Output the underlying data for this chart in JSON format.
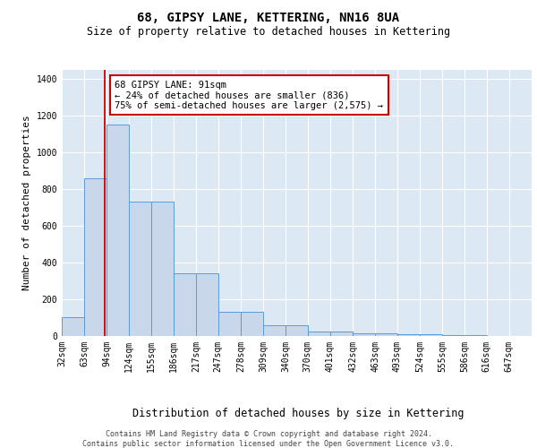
{
  "title": "68, GIPSY LANE, KETTERING, NN16 8UA",
  "subtitle": "Size of property relative to detached houses in Kettering",
  "xlabel": "Distribution of detached houses by size in Kettering",
  "ylabel": "Number of detached properties",
  "bar_edges": [
    32,
    63,
    94,
    124,
    155,
    186,
    217,
    247,
    278,
    309,
    340,
    370,
    401,
    432,
    463,
    493,
    524,
    555,
    586,
    616,
    647
  ],
  "bar_heights": [
    100,
    860,
    1150,
    730,
    730,
    340,
    340,
    130,
    130,
    60,
    60,
    25,
    25,
    15,
    15,
    10,
    10,
    5,
    5,
    2,
    2
  ],
  "bar_color": "#c8d8ea",
  "bar_edgecolor": "#5b9bd5",
  "background_color": "#dce9f5",
  "grid_color": "#ffffff",
  "red_line_x": 91,
  "red_line_color": "#cc0000",
  "annotation_line1": "68 GIPSY LANE: 91sqm",
  "annotation_line2": "← 24% of detached houses are smaller (836)",
  "annotation_line3": "75% of semi-detached houses are larger (2,575) →",
  "ylim": [
    0,
    1450
  ],
  "yticks": [
    0,
    200,
    400,
    600,
    800,
    1000,
    1200,
    1400
  ],
  "tick_labels": [
    "32sqm",
    "63sqm",
    "94sqm",
    "124sqm",
    "155sqm",
    "186sqm",
    "217sqm",
    "247sqm",
    "278sqm",
    "309sqm",
    "340sqm",
    "370sqm",
    "401sqm",
    "432sqm",
    "463sqm",
    "493sqm",
    "524sqm",
    "555sqm",
    "586sqm",
    "616sqm",
    "647sqm"
  ],
  "footer_text": "Contains HM Land Registry data © Crown copyright and database right 2024.\nContains public sector information licensed under the Open Government Licence v3.0.",
  "title_fontsize": 10,
  "subtitle_fontsize": 8.5,
  "xlabel_fontsize": 8.5,
  "ylabel_fontsize": 8,
  "tick_fontsize": 7,
  "annotation_fontsize": 7.5,
  "footer_fontsize": 6
}
